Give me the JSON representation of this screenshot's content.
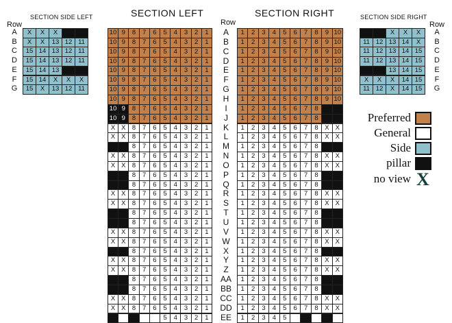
{
  "titles": {
    "section_left": "SECTION LEFT",
    "section_right": "SECTION RIGHT",
    "side_left": "SECTION SIDE LEFT",
    "side_right": "SECTION SIDE RIGHT",
    "row_header": "Row"
  },
  "rows_main": [
    "A",
    "B",
    "C",
    "D",
    "E",
    "F",
    "G",
    "H",
    "I",
    "J",
    "K",
    "L",
    "M",
    "N",
    "O",
    "P",
    "Q",
    "R",
    "S",
    "T",
    "U",
    "V",
    "W",
    "X",
    "Y",
    "Z",
    "AA",
    "BB",
    "CC",
    "DD",
    "EE"
  ],
  "rows_side": [
    "A",
    "B",
    "C",
    "D",
    "E",
    "F",
    "G"
  ],
  "legend": {
    "items": [
      {
        "label": "Preferred",
        "color": "#c2814a"
      },
      {
        "label": "General",
        "color": "#ffffff"
      },
      {
        "label": "Side",
        "color": "#8fc0cb"
      },
      {
        "label": "pillar",
        "color": "#111111"
      }
    ],
    "no_view": {
      "label": "no view",
      "symbol": "X"
    }
  },
  "side_left": [
    [
      "s:X",
      "s:X",
      "s:X",
      "k:",
      "k:"
    ],
    [
      "s:X",
      "s:X",
      "s:13",
      "s:12",
      "s:11"
    ],
    [
      "s:15",
      "s:14",
      "s:13",
      "s:12",
      "s:11"
    ],
    [
      "s:15",
      "s:14",
      "s:13",
      "s:12",
      "s:11"
    ],
    [
      "s:15",
      "s:14",
      "s:13",
      "k:",
      "k:"
    ],
    [
      "s:15",
      "s:14",
      "s:X",
      "s:X",
      "s:X"
    ],
    [
      "s:15",
      "s:X",
      "s:13",
      "s:12",
      "s:11"
    ]
  ],
  "side_right": [
    [
      "k:",
      "k:",
      "s:X",
      "s:X",
      "s:X"
    ],
    [
      "s:11",
      "s:12",
      "s:13",
      "s:14",
      "s:X"
    ],
    [
      "s:11",
      "s:12",
      "s:13",
      "s:14",
      "s:15"
    ],
    [
      "s:11",
      "s:12",
      "s:13",
      "s:14",
      "s:15"
    ],
    [
      "k:",
      "k:",
      "s:13",
      "s:14",
      "s:15"
    ],
    [
      "s:X",
      "s:X",
      "s:X",
      "s:14",
      "s:15"
    ],
    [
      "s:11",
      "s:12",
      "s:X",
      "s:14",
      "s:15"
    ]
  ],
  "left_section": [
    [
      "p:10",
      "p:9",
      "p:8",
      "p:7",
      "p:6",
      "p:5",
      "p:4",
      "p:3",
      "p:2",
      "p:1"
    ],
    [
      "p:10",
      "p:9",
      "p:8",
      "p:7",
      "p:6",
      "p:5",
      "p:4",
      "p:3",
      "p:2",
      "p:1"
    ],
    [
      "p:10",
      "p:9",
      "p:8",
      "p:7",
      "p:6",
      "p:5",
      "p:4",
      "p:3",
      "p:2",
      "p:1"
    ],
    [
      "p:10",
      "p:9",
      "p:8",
      "p:7",
      "p:6",
      "p:5",
      "p:4",
      "p:3",
      "p:2",
      "p:1"
    ],
    [
      "p:10",
      "p:9",
      "p:8",
      "p:7",
      "p:6",
      "p:5",
      "p:4",
      "p:3",
      "p:2",
      "p:1"
    ],
    [
      "p:10",
      "p:9",
      "p:8",
      "p:7",
      "p:6",
      "p:5",
      "p:4",
      "p:3",
      "p:2",
      "p:1"
    ],
    [
      "p:10",
      "p:9",
      "p:8",
      "p:7",
      "p:6",
      "p:5",
      "p:4",
      "p:3",
      "p:2",
      "p:1"
    ],
    [
      "p:10",
      "p:9",
      "p:8",
      "p:7",
      "p:6",
      "p:5",
      "p:4",
      "p:3",
      "p:2",
      "p:1"
    ],
    [
      "k:10",
      "k:9",
      "p:8",
      "p:7",
      "p:6",
      "p:5",
      "p:4",
      "p:3",
      "p:2",
      "p:1"
    ],
    [
      "k:10",
      "k:9",
      "p:8",
      "p:7",
      "p:6",
      "p:5",
      "p:4",
      "p:3",
      "p:2",
      "p:1"
    ],
    [
      "g:X",
      "g:X",
      "g:8",
      "g:7",
      "g:6",
      "g:5",
      "g:4",
      "g:3",
      "g:2",
      "g:1"
    ],
    [
      "g:X",
      "g:X",
      "g:8",
      "g:7",
      "g:6",
      "g:5",
      "g:4",
      "g:3",
      "g:2",
      "g:1"
    ],
    [
      "k:",
      "k:",
      "g:8",
      "g:7",
      "g:6",
      "g:5",
      "g:4",
      "g:3",
      "g:2",
      "g:1"
    ],
    [
      "g:X",
      "g:X",
      "g:8",
      "g:7",
      "g:6",
      "g:5",
      "g:4",
      "g:3",
      "g:2",
      "g:1"
    ],
    [
      "g:X",
      "g:X",
      "g:8",
      "g:7",
      "g:6",
      "g:5",
      "g:4",
      "g:3",
      "g:2",
      "g:1"
    ],
    [
      "k:",
      "k:",
      "g:8",
      "g:7",
      "g:6",
      "g:5",
      "g:4",
      "g:3",
      "g:2",
      "g:1"
    ],
    [
      "k:",
      "k:",
      "g:8",
      "g:7",
      "g:6",
      "g:5",
      "g:4",
      "g:3",
      "g:2",
      "g:1"
    ],
    [
      "g:X",
      "g:X",
      "g:8",
      "g:7",
      "g:6",
      "g:5",
      "g:4",
      "g:3",
      "g:2",
      "g:1"
    ],
    [
      "g:X",
      "g:X",
      "g:8",
      "g:7",
      "g:6",
      "g:5",
      "g:4",
      "g:3",
      "g:2",
      "g:1"
    ],
    [
      "k:",
      "k:",
      "g:8",
      "g:7",
      "g:6",
      "g:5",
      "g:4",
      "g:3",
      "g:2",
      "g:1"
    ],
    [
      "k:",
      "k:",
      "g:8",
      "g:7",
      "g:6",
      "g:5",
      "g:4",
      "g:3",
      "g:2",
      "g:1"
    ],
    [
      "g:X",
      "g:X",
      "g:8",
      "g:7",
      "g:6",
      "g:5",
      "g:4",
      "g:3",
      "g:2",
      "g:1"
    ],
    [
      "g:X",
      "g:X",
      "g:8",
      "g:7",
      "g:6",
      "g:5",
      "g:4",
      "g:3",
      "g:2",
      "g:1"
    ],
    [
      "k:",
      "k:",
      "g:8",
      "g:7",
      "g:6",
      "g:5",
      "g:4",
      "g:3",
      "g:2",
      "g:1"
    ],
    [
      "g:X",
      "g:X",
      "g:8",
      "g:7",
      "g:6",
      "g:5",
      "g:4",
      "g:3",
      "g:2",
      "g:1"
    ],
    [
      "g:X",
      "g:X",
      "g:8",
      "g:7",
      "g:6",
      "g:5",
      "g:4",
      "g:3",
      "g:2",
      "g:1"
    ],
    [
      "k:",
      "k:",
      "g:8",
      "g:7",
      "g:6",
      "g:5",
      "g:4",
      "g:3",
      "g:2",
      "g:1"
    ],
    [
      "k:",
      "k:",
      "g:8",
      "g:7",
      "g:6",
      "g:5",
      "g:4",
      "g:3",
      "g:2",
      "g:1"
    ],
    [
      "g:X",
      "g:X",
      "g:8",
      "g:7",
      "g:6",
      "g:5",
      "g:4",
      "g:3",
      "g:2",
      "g:1"
    ],
    [
      "g:X",
      "g:X",
      "g:8",
      "g:7",
      "g:6",
      "g:5",
      "g:4",
      "g:3",
      "g:2",
      "g:1"
    ],
    [
      "k:",
      "b:",
      "k:",
      "b:",
      "b:",
      "g:5",
      "g:4",
      "g:3",
      "g:2",
      "g:1"
    ]
  ],
  "right_section": [
    [
      "p:1",
      "p:2",
      "p:3",
      "p:4",
      "p:5",
      "p:6",
      "p:7",
      "p:8",
      "p:9",
      "p:10"
    ],
    [
      "p:1",
      "p:2",
      "p:3",
      "p:4",
      "p:5",
      "p:6",
      "p:7",
      "p:8",
      "p:9",
      "p:10"
    ],
    [
      "p:1",
      "p:2",
      "p:3",
      "p:4",
      "p:5",
      "p:6",
      "p:7",
      "p:8",
      "p:9",
      "p:10"
    ],
    [
      "p:1",
      "p:2",
      "p:3",
      "p:4",
      "p:5",
      "p:6",
      "p:7",
      "p:8",
      "p:9",
      "p:10"
    ],
    [
      "p:1",
      "p:2",
      "p:3",
      "p:4",
      "p:5",
      "p:6",
      "p:7",
      "p:8",
      "p:9",
      "p:10"
    ],
    [
      "p:1",
      "p:2",
      "p:3",
      "p:4",
      "p:5",
      "p:6",
      "p:7",
      "p:8",
      "p:9",
      "p:10"
    ],
    [
      "p:1",
      "p:2",
      "p:3",
      "p:4",
      "p:5",
      "p:6",
      "p:7",
      "p:8",
      "p:9",
      "p:10"
    ],
    [
      "p:1",
      "p:2",
      "p:3",
      "p:4",
      "p:5",
      "p:6",
      "p:7",
      "p:8",
      "p:9",
      "p:10"
    ],
    [
      "p:1",
      "p:2",
      "p:3",
      "p:4",
      "p:5",
      "p:6",
      "p:7",
      "p:8",
      "k:",
      "k:"
    ],
    [
      "p:1",
      "p:2",
      "p:3",
      "p:4",
      "p:5",
      "p:6",
      "p:7",
      "p:8",
      "k:",
      "k:"
    ],
    [
      "g:1",
      "g:2",
      "g:3",
      "g:4",
      "g:5",
      "g:6",
      "g:7",
      "g:8",
      "g:X",
      "g:X"
    ],
    [
      "g:1",
      "g:2",
      "g:3",
      "g:4",
      "g:5",
      "g:6",
      "g:7",
      "g:8",
      "g:X",
      "g:X"
    ],
    [
      "g:1",
      "g:2",
      "g:3",
      "g:4",
      "g:5",
      "g:6",
      "g:7",
      "g:8",
      "k:",
      "k:"
    ],
    [
      "g:1",
      "g:2",
      "g:3",
      "g:4",
      "g:5",
      "g:6",
      "g:7",
      "g:8",
      "g:X",
      "g:X"
    ],
    [
      "g:1",
      "g:2",
      "g:3",
      "g:4",
      "g:5",
      "g:6",
      "g:7",
      "g:8",
      "g:X",
      "g:X"
    ],
    [
      "g:1",
      "g:2",
      "g:3",
      "g:4",
      "g:5",
      "g:6",
      "g:7",
      "g:8",
      "k:",
      "k:"
    ],
    [
      "g:1",
      "g:2",
      "g:3",
      "g:4",
      "g:5",
      "g:6",
      "g:7",
      "g:8",
      "k:",
      "k:"
    ],
    [
      "g:1",
      "g:2",
      "g:3",
      "g:4",
      "g:5",
      "g:6",
      "g:7",
      "g:8",
      "g:X",
      "g:X"
    ],
    [
      "g:1",
      "g:2",
      "g:3",
      "g:4",
      "g:5",
      "g:6",
      "g:7",
      "g:8",
      "g:X",
      "g:X"
    ],
    [
      "g:1",
      "g:2",
      "g:3",
      "g:4",
      "g:5",
      "g:6",
      "g:7",
      "g:8",
      "k:",
      "k:"
    ],
    [
      "g:1",
      "g:2",
      "g:3",
      "g:4",
      "g:5",
      "g:6",
      "g:7",
      "g:8",
      "k:",
      "k:"
    ],
    [
      "g:1",
      "g:2",
      "g:3",
      "g:4",
      "g:5",
      "g:6",
      "g:7",
      "g:8",
      "g:X",
      "g:X"
    ],
    [
      "g:1",
      "g:2",
      "g:3",
      "g:4",
      "g:5",
      "g:6",
      "g:7",
      "g:8",
      "g:X",
      "g:X"
    ],
    [
      "g:1",
      "g:2",
      "g:3",
      "g:4",
      "g:5",
      "g:6",
      "g:7",
      "g:8",
      "k:",
      "k:"
    ],
    [
      "g:1",
      "g:2",
      "g:3",
      "g:4",
      "g:5",
      "g:6",
      "g:7",
      "g:8",
      "g:X",
      "g:X"
    ],
    [
      "g:1",
      "g:2",
      "g:3",
      "g:4",
      "g:5",
      "g:6",
      "g:7",
      "g:8",
      "g:X",
      "g:X"
    ],
    [
      "g:1",
      "g:2",
      "g:3",
      "g:4",
      "g:5",
      "g:6",
      "g:7",
      "g:8",
      "k:",
      "k:"
    ],
    [
      "g:1",
      "g:2",
      "g:3",
      "g:4",
      "g:5",
      "g:6",
      "g:7",
      "g:8",
      "k:",
      "k:"
    ],
    [
      "g:1",
      "g:2",
      "g:3",
      "g:4",
      "g:5",
      "g:6",
      "g:7",
      "g:8",
      "g:X",
      "g:X"
    ],
    [
      "g:1",
      "g:2",
      "g:3",
      "g:4",
      "g:5",
      "g:6",
      "g:7",
      "g:8",
      "g:X",
      "g:X"
    ],
    [
      "g:1",
      "g:2",
      "g:3",
      "g:4",
      "g:5",
      "b:",
      "k:",
      "b:",
      "k:",
      "b:"
    ]
  ]
}
